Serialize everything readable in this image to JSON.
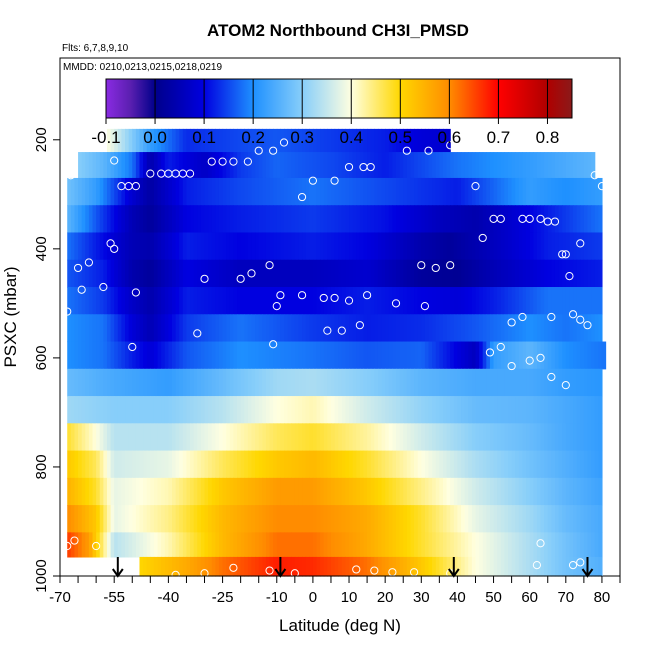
{
  "chart_data": {
    "type": "heatmap",
    "title": "ATOM2 Northbound CH3I_PMSD",
    "flights_label": "Flts: 6,7,8,9,10",
    "dates_label": "MMDD: 0210,0213,0215,0218,0219",
    "xlabel": "Latitude (deg N)",
    "ylabel": "PSXC (mbar)",
    "xlim": [
      -70,
      85
    ],
    "ylim": [
      1000,
      50
    ],
    "x_ticks": [
      -70,
      -55,
      -40,
      -25,
      -10,
      0,
      10,
      20,
      30,
      40,
      50,
      60,
      70,
      80
    ],
    "x_tick_labels": [
      "-70",
      "-55",
      "-40",
      "-25",
      "-10",
      "0",
      "10",
      "20",
      "30",
      "40",
      "50",
      "60",
      "70",
      "80"
    ],
    "y_ticks": [
      200,
      400,
      600,
      800,
      1000
    ],
    "y_tick_labels": [
      "200",
      "400",
      "600",
      "800",
      "1000"
    ],
    "colorbar": {
      "range": [
        -0.1,
        0.85
      ],
      "ticks": [
        -0.1,
        0.0,
        0.1,
        0.2,
        0.3,
        0.4,
        0.5,
        0.6,
        0.7,
        0.8
      ],
      "tick_labels": [
        "-0.1",
        "0.0",
        "0.1",
        "0.2",
        "0.3",
        "0.4",
        "0.5",
        "0.6",
        "0.7",
        "0.8"
      ],
      "stops": [
        {
          "v": -0.1,
          "c": "#8a2be2"
        },
        {
          "v": -0.05,
          "c": "#5a1fb0"
        },
        {
          "v": 0.0,
          "c": "#00008b"
        },
        {
          "v": 0.1,
          "c": "#0000e0"
        },
        {
          "v": 0.2,
          "c": "#1e90ff"
        },
        {
          "v": 0.3,
          "c": "#87cefa"
        },
        {
          "v": 0.4,
          "c": "#ffffe0"
        },
        {
          "v": 0.5,
          "c": "#ffd700"
        },
        {
          "v": 0.6,
          "c": "#ff8c00"
        },
        {
          "v": 0.7,
          "c": "#ff0000"
        },
        {
          "v": 0.8,
          "c": "#b00000"
        },
        {
          "v": 0.85,
          "c": "#8b1a1a"
        }
      ]
    },
    "bands": [
      {
        "p": 200,
        "segments": [
          {
            "x0": -57,
            "x1": 38,
            "lats": [
              -57,
              -45,
              -35,
              -20,
              -10,
              5,
              20,
              30,
              38
            ],
            "vals": [
              0.4,
              0.22,
              0.13,
              0.15,
              0.16,
              0.14,
              0.12,
              0.09,
              0.08
            ]
          }
        ]
      },
      {
        "p": 245,
        "segments": [
          {
            "x0": -65,
            "x1": 78,
            "lats": [
              -65,
              -58,
              -50,
              -45,
              -40,
              -30,
              -20,
              -10,
              5,
              20,
              40,
              60,
              78
            ],
            "vals": [
              0.3,
              0.26,
              0.18,
              0.04,
              0.12,
              0.07,
              0.14,
              0.17,
              0.15,
              0.12,
              0.18,
              0.22,
              0.26
            ]
          }
        ]
      },
      {
        "p": 295,
        "segments": [
          {
            "x0": -68,
            "x1": 80,
            "lats": [
              -68,
              -60,
              -50,
              -45,
              -35,
              -20,
              0,
              20,
              40,
              50,
              60,
              70,
              80
            ],
            "vals": [
              0.28,
              0.22,
              0.08,
              0.03,
              0.12,
              0.15,
              0.18,
              0.15,
              0.12,
              0.17,
              0.22,
              0.2,
              0.22
            ]
          }
        ]
      },
      {
        "p": 345,
        "segments": [
          {
            "x0": -68,
            "x1": 80,
            "lats": [
              -68,
              -60,
              -50,
              -45,
              -35,
              -20,
              0,
              20,
              35,
              45,
              55,
              70,
              80
            ],
            "vals": [
              0.26,
              0.16,
              0.05,
              0.02,
              0.1,
              0.12,
              0.14,
              0.11,
              0.06,
              0.04,
              0.08,
              0.14,
              0.18
            ]
          }
        ]
      },
      {
        "p": 395,
        "segments": [
          {
            "x0": -68,
            "x1": 80,
            "lats": [
              -68,
              -60,
              -50,
              -45,
              -35,
              -20,
              0,
              15,
              30,
              38,
              50,
              65,
              80
            ],
            "vals": [
              0.18,
              0.12,
              0.05,
              0.04,
              0.12,
              0.1,
              0.12,
              0.1,
              0.04,
              0.02,
              0.06,
              0.12,
              0.14
            ]
          }
        ]
      },
      {
        "p": 445,
        "segments": [
          {
            "x0": -68,
            "x1": 80,
            "lats": [
              -68,
              -58,
              -50,
              -45,
              -35,
              -20,
              0,
              15,
              30,
              40,
              50,
              65,
              80
            ],
            "vals": [
              0.16,
              0.12,
              0.04,
              0.02,
              0.1,
              0.06,
              0.06,
              0.08,
              0.02,
              0.01,
              0.05,
              0.1,
              0.12
            ]
          }
        ]
      },
      {
        "p": 495,
        "segments": [
          {
            "x0": -68,
            "x1": 80,
            "lats": [
              -68,
              -58,
              -50,
              -45,
              -35,
              -20,
              0,
              15,
              30,
              40,
              50,
              65,
              80
            ],
            "vals": [
              0.18,
              0.14,
              0.07,
              0.04,
              0.12,
              0.1,
              0.1,
              0.12,
              0.1,
              0.09,
              0.12,
              0.18,
              0.18
            ]
          }
        ]
      },
      {
        "p": 545,
        "segments": [
          {
            "x0": -68,
            "x1": 80,
            "lats": [
              -68,
              -58,
              -50,
              -45,
              -35,
              -20,
              0,
              15,
              30,
              45,
              60,
              70,
              80
            ],
            "vals": [
              0.2,
              0.18,
              0.09,
              0.05,
              0.14,
              0.18,
              0.14,
              0.12,
              0.13,
              0.16,
              0.2,
              0.18,
              0.2
            ]
          }
        ]
      },
      {
        "p": 595,
        "segments": [
          {
            "x0": -68,
            "x1": 81,
            "lats": [
              -68,
              -58,
              -50,
              -45,
              -35,
              -20,
              0,
              15,
              30,
              45,
              50,
              60,
              70,
              81
            ],
            "vals": [
              0.2,
              0.18,
              0.12,
              0.09,
              0.16,
              0.2,
              0.18,
              0.16,
              0.17,
              0.06,
              0.22,
              0.26,
              0.2,
              0.18
            ]
          }
        ]
      },
      {
        "p": 645,
        "segments": [
          {
            "x0": -68,
            "x1": 80,
            "lats": [
              -68,
              -55,
              -40,
              -25,
              -10,
              0,
              15,
              30,
              45,
              60,
              70,
              80
            ],
            "vals": [
              0.27,
              0.24,
              0.22,
              0.27,
              0.32,
              0.33,
              0.3,
              0.26,
              0.24,
              0.24,
              0.22,
              0.21
            ]
          }
        ]
      },
      {
        "p": 695,
        "segments": [
          {
            "x0": -68,
            "x1": 80,
            "lats": [
              -68,
              -55,
              -40,
              -25,
              -10,
              0,
              15,
              30,
              45,
              60,
              70,
              80
            ],
            "vals": [
              0.32,
              0.3,
              0.3,
              0.34,
              0.4,
              0.42,
              0.36,
              0.31,
              0.27,
              0.26,
              0.24,
              0.22
            ]
          }
        ]
      },
      {
        "p": 745,
        "segments": [
          {
            "x0": -68,
            "x1": 80,
            "lats": [
              -68,
              -60,
              -55,
              -40,
              -25,
              -10,
              0,
              15,
              30,
              45,
              60,
              70,
              80
            ],
            "vals": [
              0.48,
              0.4,
              0.34,
              0.34,
              0.4,
              0.46,
              0.48,
              0.43,
              0.36,
              0.3,
              0.27,
              0.24,
              0.22
            ]
          }
        ]
      },
      {
        "p": 795,
        "segments": [
          {
            "x0": -68,
            "x1": 80,
            "lats": [
              -68,
              -60,
              -55,
              -40,
              -25,
              -10,
              0,
              15,
              30,
              45,
              60,
              70,
              80
            ],
            "vals": [
              0.52,
              0.46,
              0.36,
              0.38,
              0.46,
              0.52,
              0.54,
              0.48,
              0.4,
              0.33,
              0.28,
              0.25,
              0.22
            ]
          }
        ]
      },
      {
        "p": 845,
        "segments": [
          {
            "x0": -68,
            "x1": 80,
            "lats": [
              -68,
              -60,
              -55,
              -40,
              -25,
              -10,
              0,
              15,
              30,
              45,
              60,
              70,
              80
            ],
            "vals": [
              0.55,
              0.48,
              0.38,
              0.42,
              0.52,
              0.58,
              0.58,
              0.52,
              0.44,
              0.36,
              0.3,
              0.26,
              0.23
            ]
          }
        ]
      },
      {
        "p": 895,
        "segments": [
          {
            "x0": -68,
            "x1": 80,
            "lats": [
              -68,
              -60,
              -55,
              -40,
              -25,
              -10,
              0,
              15,
              30,
              45,
              60,
              70,
              80
            ],
            "vals": [
              0.6,
              0.52,
              0.38,
              0.44,
              0.54,
              0.6,
              0.6,
              0.56,
              0.48,
              0.38,
              0.32,
              0.27,
              0.24
            ]
          }
        ]
      },
      {
        "p": 945,
        "segments": [
          {
            "x0": -68,
            "x1": 80,
            "lats": [
              -68,
              -62,
              -55,
              -40,
              -25,
              -10,
              0,
              15,
              30,
              45,
              60,
              70,
              80
            ],
            "vals": [
              0.66,
              0.58,
              0.34,
              0.42,
              0.54,
              0.62,
              0.62,
              0.56,
              0.48,
              0.4,
              0.33,
              0.28,
              0.24
            ]
          }
        ]
      },
      {
        "p": 985,
        "segments": [
          {
            "x0": -48,
            "x1": 80,
            "lats": [
              -48,
              -35,
              -25,
              -10,
              0,
              15,
              30,
              45,
              60,
              70,
              80
            ],
            "vals": [
              0.5,
              0.56,
              0.62,
              0.68,
              0.67,
              0.62,
              0.52,
              0.4,
              0.33,
              0.28,
              0.25
            ]
          }
        ]
      }
    ],
    "points": [
      [
        -67,
        245
      ],
      [
        -67,
        265
      ],
      [
        -55,
        238
      ],
      [
        -49,
        285
      ],
      [
        -51,
        285
      ],
      [
        -53,
        285
      ],
      [
        -55,
        400
      ],
      [
        -65,
        435
      ],
      [
        -62,
        425
      ],
      [
        -58,
        470
      ],
      [
        -64,
        475
      ],
      [
        -56,
        390
      ],
      [
        -68,
        515
      ],
      [
        -49,
        480
      ],
      [
        -50,
        580
      ],
      [
        -45,
        262
      ],
      [
        -42,
        262
      ],
      [
        -40,
        262
      ],
      [
        -38,
        262
      ],
      [
        -36,
        262
      ],
      [
        -34,
        262
      ],
      [
        -28,
        240
      ],
      [
        -25,
        240
      ],
      [
        -22,
        240
      ],
      [
        -18,
        240
      ],
      [
        -15,
        220
      ],
      [
        -11,
        220
      ],
      [
        -8,
        205
      ],
      [
        -20,
        455
      ],
      [
        -17,
        445
      ],
      [
        -32,
        555
      ],
      [
        -30,
        455
      ],
      [
        -10,
        505
      ],
      [
        -12,
        430
      ],
      [
        -3,
        305
      ],
      [
        0,
        275
      ],
      [
        6,
        275
      ],
      [
        10,
        250
      ],
      [
        14,
        250
      ],
      [
        16,
        250
      ],
      [
        -9,
        485
      ],
      [
        -3,
        485
      ],
      [
        3,
        490
      ],
      [
        6,
        490
      ],
      [
        10,
        495
      ],
      [
        15,
        485
      ],
      [
        23,
        500
      ],
      [
        30,
        430
      ],
      [
        34,
        435
      ],
      [
        38,
        430
      ],
      [
        31,
        505
      ],
      [
        4,
        550
      ],
      [
        8,
        550
      ],
      [
        13,
        540
      ],
      [
        -11,
        575
      ],
      [
        26,
        220
      ],
      [
        32,
        220
      ],
      [
        38,
        210
      ],
      [
        45,
        285
      ],
      [
        47,
        380
      ],
      [
        50,
        345
      ],
      [
        52,
        345
      ],
      [
        58,
        345
      ],
      [
        60,
        345
      ],
      [
        63,
        345
      ],
      [
        65,
        350
      ],
      [
        67,
        350
      ],
      [
        49,
        590
      ],
      [
        52,
        580
      ],
      [
        55,
        615
      ],
      [
        60,
        605
      ],
      [
        63,
        600
      ],
      [
        66,
        525
      ],
      [
        72,
        520
      ],
      [
        74,
        530
      ],
      [
        76,
        540
      ],
      [
        69,
        410
      ],
      [
        70,
        410
      ],
      [
        71,
        450
      ],
      [
        74,
        390
      ],
      [
        78,
        265
      ],
      [
        80,
        285
      ],
      [
        83,
        585
      ],
      [
        58,
        525
      ],
      [
        55,
        535
      ],
      [
        70,
        650
      ],
      [
        66,
        635
      ],
      [
        63,
        940
      ],
      [
        62,
        980
      ],
      [
        74,
        975
      ],
      [
        72,
        980
      ],
      [
        -38,
        998
      ],
      [
        -30,
        995
      ],
      [
        -22,
        985
      ],
      [
        -12,
        990
      ],
      [
        -5,
        995
      ],
      [
        12,
        988
      ],
      [
        17,
        990
      ],
      [
        22,
        993
      ],
      [
        28,
        993
      ],
      [
        38,
        995
      ],
      [
        -66,
        935
      ],
      [
        -68,
        945
      ],
      [
        -60,
        945
      ]
    ],
    "arrows": [
      -54,
      -9,
      39,
      76
    ]
  }
}
